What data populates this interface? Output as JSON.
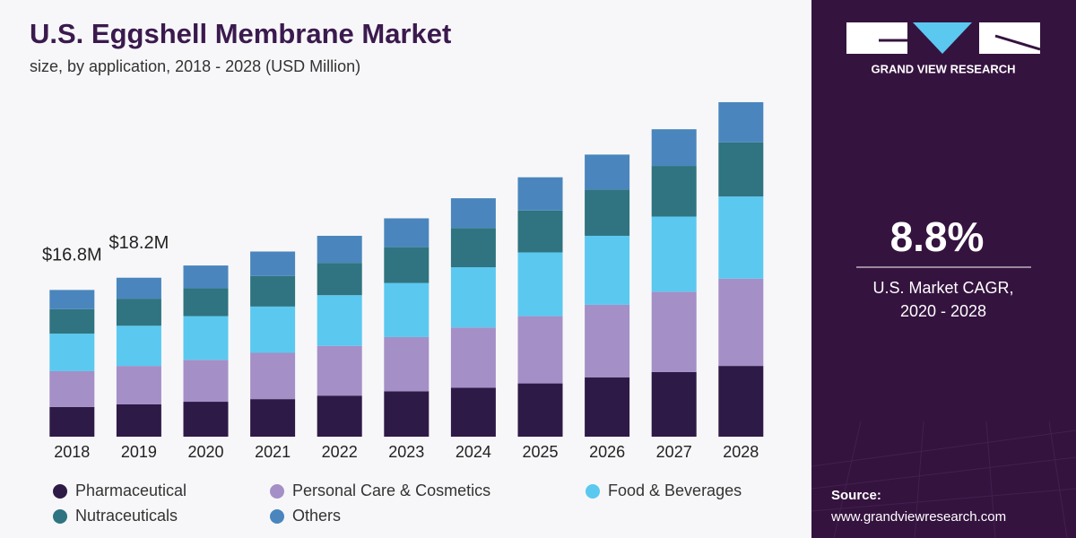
{
  "chart_data": {
    "type": "stacked-bar",
    "title": "U.S. Eggshell Membrane Market",
    "subtitle": "size, by application, 2018 - 2028 (USD Million)",
    "categories": [
      "2018",
      "2019",
      "2020",
      "2021",
      "2022",
      "2023",
      "2024",
      "2025",
      "2026",
      "2027",
      "2028"
    ],
    "series": [
      {
        "name": "Pharmaceutical",
        "color": "#2e1a47",
        "values": [
          3.4,
          3.7,
          4.0,
          4.3,
          4.7,
          5.2,
          5.6,
          6.1,
          6.8,
          7.4,
          8.1
        ]
      },
      {
        "name": "Personal Care & Cosmetics",
        "color": "#a48fc6",
        "values": [
          4.1,
          4.4,
          4.8,
          5.3,
          5.7,
          6.2,
          6.9,
          7.7,
          8.3,
          9.2,
          10.0
        ]
      },
      {
        "name": "Food & Beverages",
        "color": "#5bc8f0",
        "values": [
          4.3,
          4.6,
          5.0,
          5.3,
          5.8,
          6.2,
          6.9,
          7.3,
          7.9,
          8.6,
          9.4
        ]
      },
      {
        "name": "Nutraceuticals",
        "color": "#2f7480",
        "values": [
          2.8,
          3.1,
          3.2,
          3.5,
          3.7,
          4.1,
          4.5,
          4.8,
          5.3,
          5.8,
          6.2
        ]
      },
      {
        "name": "Others",
        "color": "#4a86bd",
        "values": [
          2.2,
          2.4,
          2.6,
          2.8,
          3.1,
          3.3,
          3.4,
          3.8,
          4.0,
          4.2,
          4.6
        ]
      }
    ],
    "annotations": [
      {
        "category": "2018",
        "value": 16.8,
        "label": "$16.8M"
      },
      {
        "category": "2019",
        "value": 18.2,
        "label": "$18.2M"
      }
    ],
    "ylim": [
      0,
      38.5
    ]
  },
  "side_panel": {
    "brand": "GRAND VIEW RESEARCH",
    "cagr": "8.8%",
    "cagr_caption": [
      "U.S. Market CAGR,",
      "2020 - 2028"
    ],
    "source_label": "Source:",
    "source_url": "www.grandviewresearch.com"
  }
}
